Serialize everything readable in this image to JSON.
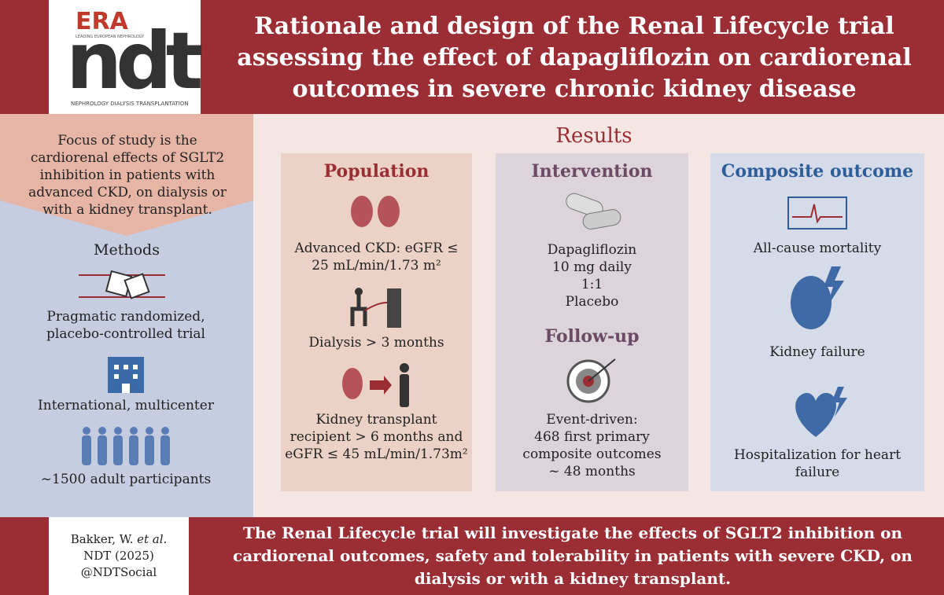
{
  "header": {
    "logo": {
      "brand": "ERA",
      "tagline": "LEADING EUROPEAN NEPHROLOGY",
      "journal": "ndt",
      "journal_full": "NEPHROLOGY DIALYSIS TRANSPLANTATION"
    },
    "title": "Rationale and design of the Renal Lifecycle trial assessing the effect of dapagliflozin on cardiorenal outcomes in severe chronic kidney disease"
  },
  "focus": "Focus of study is the cardiorenal effects of SGLT2 inhibition in patients with advanced CKD, on dialysis or with a kidney transplant.",
  "methods": {
    "title": "Methods",
    "items": [
      "Pragmatic randomized, placebo-controlled trial",
      "International, multicenter",
      "~1500 adult participants"
    ]
  },
  "results": {
    "title": "Results",
    "population": {
      "title": "Population",
      "items": [
        "Advanced CKD: eGFR ≤ 25 mL/min/1.73 m²",
        "Dialysis > 3 months",
        "Kidney transplant recipient > 6 months and eGFR ≤ 45 mL/min/1.73m²"
      ]
    },
    "intervention": {
      "title": "Intervention",
      "items": [
        "Dapagliflozin",
        "10 mg daily",
        "1:1",
        "Placebo"
      ]
    },
    "follow_up": {
      "title": "Follow-up",
      "items": [
        "Event-driven:",
        "468 first primary composite outcomes",
        "~ 48 months"
      ]
    },
    "composite": {
      "title": "Composite outcome",
      "items": [
        "All-cause mortality",
        "Kidney failure",
        "Hospitalization for heart failure"
      ]
    }
  },
  "conclusion": "The Renal Lifecycle trial will investigate the effects of SGLT2 inhibition on cardiorenal outcomes, safety and tolerability in patients with severe CKD, on dialysis or with a kidney transplant.",
  "citation": {
    "author": "Bakker, W.",
    "etal": "et al.",
    "journal": "NDT (2025)",
    "handle": "@NDTSocial"
  }
}
